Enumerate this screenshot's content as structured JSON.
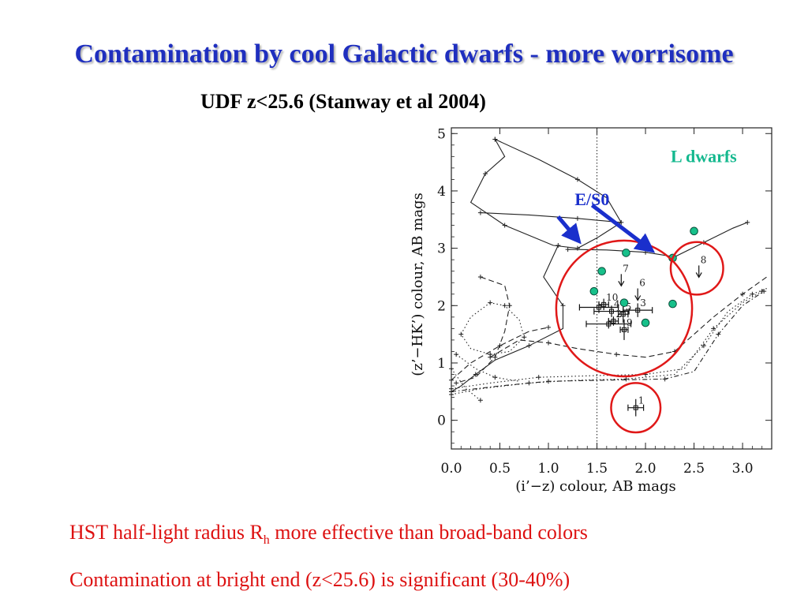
{
  "slide": {
    "title": "Contamination by cool Galactic dwarfs - more worrisome",
    "subtitle": "UDF z<25.6 (Stanway et al 2004)",
    "note1_pre": "HST half-light radius R",
    "note1_sub": "h",
    "note1_post": " more effective than broad-band colors",
    "note2": "Contamination at bright end (z<25.6) is significant (30-40%)"
  },
  "chart_data": {
    "type": "scatter",
    "xlabel": "(i’−z) colour, AB mags",
    "ylabel": "(z’−HK’) colour, AB mags",
    "xlim": [
      0.0,
      3.3
    ],
    "ylim": [
      -0.5,
      5.1
    ],
    "x_ticks": [
      "0.0",
      "0.5",
      "1.0",
      "1.5",
      "2.0",
      "2.5",
      "3.0"
    ],
    "y_ticks": [
      "0",
      "1",
      "2",
      "3",
      "4",
      "5"
    ],
    "vertical_line_x": 1.5,
    "annotations": [
      {
        "text": "L dwarfs",
        "x": 2.6,
        "y": 4.5,
        "color": "#14b88e"
      },
      {
        "text": "E/S0",
        "x": 1.45,
        "y": 3.75,
        "color": "#1a2fcc"
      }
    ],
    "arrows": [
      {
        "from": [
          1.1,
          3.55
        ],
        "to": [
          1.3,
          3.15
        ]
      },
      {
        "from": [
          1.45,
          3.75
        ],
        "to": [
          2.05,
          2.98
        ]
      }
    ],
    "l_dwarfs": {
      "color": "#17c08a",
      "points": [
        [
          1.47,
          2.25
        ],
        [
          1.55,
          2.6
        ],
        [
          1.8,
          2.92
        ],
        [
          1.78,
          2.05
        ],
        [
          2.0,
          1.7
        ],
        [
          2.28,
          2.83
        ],
        [
          2.28,
          2.03
        ],
        [
          2.5,
          3.3
        ]
      ]
    },
    "candidates": [
      {
        "label": "",
        "x": 1.52,
        "y": 1.97,
        "xerr": 0.2,
        "yerr": 0.1
      },
      {
        "label": "10",
        "x": 1.57,
        "y": 2.02,
        "xerr": 0.05,
        "yerr": 0.1
      },
      {
        "label": "4",
        "x": 1.65,
        "y": 1.9,
        "xerr": 0.18,
        "yerr": 0.1
      },
      {
        "label": "",
        "x": 1.62,
        "y": 1.68,
        "xerr": 0.23,
        "yerr": 0.08
      },
      {
        "label": "2",
        "x": 1.67,
        "y": 1.73,
        "xerr": 0.05,
        "yerr": 0.08
      },
      {
        "label": "5",
        "x": 1.77,
        "y": 1.85,
        "xerr": 0.05,
        "yerr": 0.15
      },
      {
        "label": "3",
        "x": 1.92,
        "y": 1.92,
        "xerr": 0.15,
        "yerr": 0.12
      },
      {
        "label": "9",
        "x": 1.78,
        "y": 1.58,
        "xerr": 0.04,
        "yerr": 0.18
      },
      {
        "label": "1",
        "x": 1.9,
        "y": 0.22,
        "xerr": 0.08,
        "yerr": 0.15
      }
    ],
    "upper_limits": [
      {
        "label": "7",
        "x": 1.75,
        "y": 2.55
      },
      {
        "label": "6",
        "x": 1.92,
        "y": 2.3
      },
      {
        "label": "8",
        "x": 2.55,
        "y": 2.7
      }
    ],
    "circles": [
      {
        "cx": 1.78,
        "cy": 1.95,
        "r": 0.88
      },
      {
        "cx": 2.53,
        "cy": 2.65,
        "r": 0.34
      },
      {
        "cx": 1.9,
        "cy": 0.22,
        "r": 0.32
      }
    ],
    "tracks": [
      {
        "style": "solid",
        "points": [
          [
            0.45,
            4.9
          ],
          [
            0.9,
            4.55
          ],
          [
            1.3,
            4.2
          ],
          [
            1.6,
            3.88
          ],
          [
            1.75,
            3.45
          ],
          [
            1.5,
            3.18
          ],
          [
            1.3,
            3.0
          ],
          [
            1.05,
            3.05
          ],
          [
            0.55,
            3.4
          ],
          [
            0.2,
            3.8
          ],
          [
            0.35,
            4.3
          ],
          [
            0.55,
            4.6
          ],
          [
            0.45,
            4.9
          ]
        ]
      },
      {
        "style": "solid",
        "points": [
          [
            0.3,
            3.62
          ],
          [
            0.8,
            3.58
          ],
          [
            1.3,
            3.52
          ],
          [
            1.75,
            3.45
          ]
        ]
      },
      {
        "style": "solid",
        "points": [
          [
            1.2,
            2.98
          ],
          [
            1.6,
            2.97
          ],
          [
            2.0,
            2.93
          ],
          [
            2.3,
            2.85
          ],
          [
            2.6,
            3.1
          ],
          [
            2.9,
            3.35
          ],
          [
            3.05,
            3.45
          ]
        ]
      },
      {
        "style": "solid",
        "points": [
          [
            1.1,
            3.05
          ],
          [
            0.95,
            2.5
          ],
          [
            1.15,
            2.0
          ],
          [
            1.15,
            1.6
          ],
          [
            0.8,
            1.3
          ],
          [
            0.45,
            1.05
          ],
          [
            0.25,
            0.8
          ],
          [
            0.1,
            0.6
          ],
          [
            0.0,
            0.5
          ]
        ]
      },
      {
        "style": "dashed",
        "points": [
          [
            0.0,
            0.7
          ],
          [
            0.2,
            1.0
          ],
          [
            0.5,
            1.3
          ],
          [
            0.8,
            1.55
          ],
          [
            1.0,
            1.62
          ]
        ]
      },
      {
        "style": "dashed",
        "points": [
          [
            0.3,
            2.5
          ],
          [
            0.55,
            2.35
          ],
          [
            0.6,
            2.0
          ],
          [
            0.55,
            1.55
          ],
          [
            0.45,
            1.1
          ],
          [
            0.25,
            0.75
          ],
          [
            0.05,
            0.65
          ]
        ]
      },
      {
        "style": "dashed",
        "points": [
          [
            0.4,
            1.1
          ],
          [
            0.7,
            1.4
          ],
          [
            1.0,
            1.35
          ],
          [
            1.3,
            1.25
          ],
          [
            1.7,
            1.15
          ],
          [
            2.0,
            1.1
          ],
          [
            2.3,
            1.2
          ],
          [
            2.7,
            1.8
          ],
          [
            3.0,
            2.2
          ],
          [
            3.25,
            2.5
          ]
        ]
      },
      {
        "style": "dotted",
        "points": [
          [
            0.0,
            0.45
          ],
          [
            0.3,
            0.55
          ],
          [
            0.8,
            0.65
          ],
          [
            1.3,
            0.7
          ],
          [
            1.8,
            0.72
          ],
          [
            2.3,
            0.8
          ],
          [
            2.6,
            1.3
          ],
          [
            2.85,
            1.9
          ],
          [
            3.1,
            2.2
          ],
          [
            3.25,
            2.3
          ]
        ]
      },
      {
        "style": "dotted",
        "points": [
          [
            0.0,
            0.55
          ],
          [
            0.4,
            0.65
          ],
          [
            0.9,
            0.75
          ],
          [
            1.5,
            0.78
          ],
          [
            2.0,
            0.8
          ],
          [
            2.4,
            0.9
          ],
          [
            2.7,
            1.6
          ],
          [
            3.0,
            2.05
          ],
          [
            3.2,
            2.25
          ]
        ]
      },
      {
        "style": "dashdot",
        "points": [
          [
            0.0,
            0.5
          ],
          [
            0.5,
            0.6
          ],
          [
            1.0,
            0.68
          ],
          [
            1.6,
            0.7
          ],
          [
            2.2,
            0.72
          ],
          [
            2.5,
            0.85
          ],
          [
            2.75,
            1.5
          ],
          [
            3.0,
            2.0
          ],
          [
            3.22,
            2.25
          ]
        ]
      },
      {
        "style": "dotted",
        "points": [
          [
            0.4,
            2.05
          ],
          [
            0.2,
            1.8
          ],
          [
            0.1,
            1.5
          ],
          [
            0.2,
            1.25
          ],
          [
            0.4,
            1.15
          ],
          [
            0.6,
            1.2
          ],
          [
            0.75,
            1.45
          ],
          [
            0.7,
            1.75
          ],
          [
            0.55,
            2.0
          ],
          [
            0.4,
            2.05
          ]
        ]
      },
      {
        "style": "dotted",
        "points": [
          [
            0.05,
            1.15
          ],
          [
            0.25,
            0.9
          ],
          [
            0.45,
            0.75
          ],
          [
            0.7,
            0.68
          ]
        ]
      },
      {
        "style": "dotted",
        "points": [
          [
            0.0,
            0.9
          ],
          [
            0.15,
            0.55
          ],
          [
            0.3,
            0.35
          ]
        ]
      }
    ]
  }
}
